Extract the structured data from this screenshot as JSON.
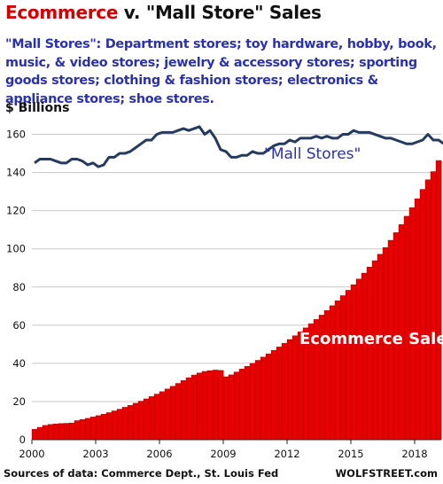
{
  "title": {
    "part1": "Ecommerce",
    "part2": " v. \"Mall Store\" Sales"
  },
  "subtitle": "\"Mall Stores\": Department stores; toy hardware, hobby, book, music, & video stores; jewelry & accessory stores; sporting goods stores; clothing & fashion stores; electronics & appliance stores; shoe stores.",
  "footer": {
    "source": "Sources of data: Commerce Dept., St. Louis Fed",
    "brand": "WOLFSTREET.com"
  },
  "colors": {
    "ecommerce": "#e80000",
    "mall": "#243a5e",
    "title_accent": "#d10000",
    "subtitle": "#2b32a8",
    "grid": "#c8c8c8"
  },
  "chart_data": {
    "type": "bar",
    "ylabel": "$ Billions",
    "ylim": [
      0,
      170
    ],
    "yticks": [
      0,
      20,
      40,
      60,
      80,
      100,
      120,
      140,
      160
    ],
    "grid": true,
    "x_ticks": [
      "2000",
      "2003",
      "2006",
      "2009",
      "2012",
      "2015",
      "2018"
    ],
    "x_start": 2000,
    "periods_per_year": 4,
    "series": [
      {
        "name": "\"Mall Stores\"",
        "type": "line",
        "values": [
          145,
          147,
          147,
          147,
          146,
          145,
          145,
          147,
          147,
          146,
          144,
          145,
          143,
          144,
          148,
          148,
          150,
          150,
          151,
          153,
          155,
          157,
          157,
          160,
          161,
          161,
          161,
          162,
          163,
          162,
          163,
          164,
          160,
          162,
          158,
          152,
          151,
          148,
          148,
          149,
          149,
          151,
          150,
          150,
          152,
          154,
          155,
          155,
          157,
          156,
          158,
          158,
          158,
          159,
          158,
          159,
          158,
          158,
          160,
          160,
          162,
          161,
          161,
          161,
          160,
          159,
          158,
          158,
          157,
          156,
          155,
          155,
          156,
          157,
          160,
          157,
          157,
          155,
          155
        ]
      },
      {
        "name": "Ecommerce Sales",
        "type": "bar",
        "values": [
          5.5,
          6.5,
          7.5,
          8,
          8.3,
          8.5,
          8.6,
          8.8,
          10,
          10.6,
          11.2,
          11.9,
          12.6,
          13.4,
          14.2,
          15.1,
          16,
          17,
          18,
          19.1,
          20.2,
          21.4,
          22.6,
          23.9,
          25.2,
          26.6,
          28,
          29.5,
          31,
          32.5,
          33.9,
          35,
          35.8,
          36.2,
          36.5,
          36.3,
          33,
          34,
          35.5,
          37,
          38.5,
          40,
          41.6,
          43.3,
          45,
          46.8,
          48.6,
          50.5,
          52.5,
          54.5,
          56.5,
          58.6,
          60.8,
          63,
          65.3,
          67.7,
          70.2,
          72.8,
          75.5,
          78.3,
          81.2,
          84.2,
          87.3,
          90.5,
          93.8,
          97.2,
          100.7,
          104.5,
          108.5,
          112.7,
          117.1,
          121.6,
          126.3,
          131.2,
          136.2,
          140.5,
          146.3
        ]
      }
    ]
  }
}
